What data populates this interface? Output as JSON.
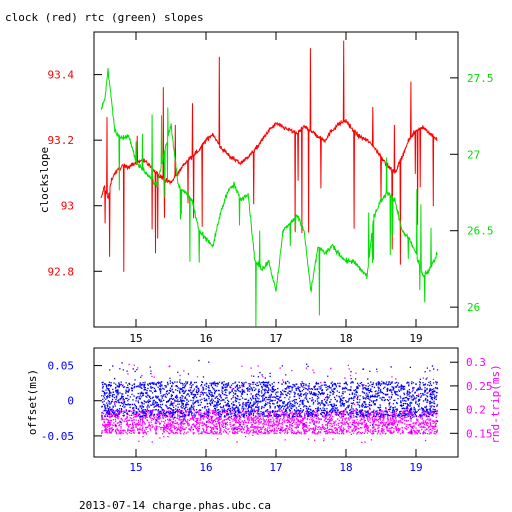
{
  "header": {
    "title": "clock (red) rtc (green) slopes",
    "footer": "2013-07-14 charge.phas.ubc.ca"
  },
  "colors": {
    "clock": "#ff0000",
    "rtc": "#00e000",
    "offset": "#0000ff",
    "roundtrip": "#ff00ff",
    "axis": "#000000"
  },
  "chart_data": [
    {
      "type": "line",
      "title": "clock (red) rtc (green) slopes",
      "xlim": [
        14.4,
        19.6
      ],
      "x_ticks": [
        15,
        16,
        17,
        18,
        19
      ],
      "ylabel": "clockslope",
      "ylim": [
        92.63,
        93.53
      ],
      "y_ticks": [
        92.8,
        93,
        93.2,
        93.4
      ],
      "y_tick_labels": [
        "92.8",
        "93",
        "93.2",
        "93.4"
      ],
      "y2lim": [
        25.87,
        27.8
      ],
      "y2_ticks": [
        26,
        26.5,
        27,
        27.5
      ],
      "y2_tick_labels": [
        "26",
        "26.5",
        "27",
        "27.5"
      ],
      "grid": false,
      "series": [
        {
          "name": "clock",
          "axis": "left",
          "color": "#ff0000",
          "x": [
            14.5,
            14.55,
            14.6,
            14.65,
            14.7,
            14.8,
            14.9,
            15.0,
            15.1,
            15.2,
            15.3,
            15.4,
            15.5,
            15.6,
            15.7,
            15.8,
            15.9,
            16.0,
            16.1,
            16.2,
            16.3,
            16.4,
            16.5,
            16.6,
            16.7,
            16.8,
            16.9,
            17.0,
            17.1,
            17.2,
            17.3,
            17.4,
            17.5,
            17.6,
            17.7,
            17.8,
            17.9,
            18.0,
            18.1,
            18.2,
            18.3,
            18.4,
            18.5,
            18.6,
            18.7,
            18.8,
            18.9,
            19.0,
            19.1,
            19.2,
            19.3
          ],
          "y": [
            93.02,
            93.06,
            93.02,
            93.08,
            93.1,
            93.12,
            93.12,
            93.13,
            93.14,
            93.12,
            93.1,
            93.08,
            93.07,
            93.1,
            93.13,
            93.15,
            93.17,
            93.2,
            93.22,
            93.18,
            93.16,
            93.14,
            93.13,
            93.15,
            93.17,
            93.2,
            93.23,
            93.25,
            93.24,
            93.23,
            93.22,
            93.24,
            93.23,
            93.21,
            93.2,
            93.23,
            93.25,
            93.26,
            93.23,
            93.21,
            93.2,
            93.18,
            93.15,
            93.12,
            93.1,
            93.15,
            93.2,
            93.23,
            93.24,
            93.22,
            93.2
          ]
        },
        {
          "name": "rtc",
          "axis": "right",
          "color": "#00e000",
          "x": [
            14.5,
            14.55,
            14.6,
            14.7,
            14.8,
            14.9,
            15.0,
            15.1,
            15.2,
            15.3,
            15.4,
            15.5,
            15.6,
            15.7,
            15.8,
            15.9,
            16.0,
            16.1,
            16.2,
            16.3,
            16.4,
            16.5,
            16.6,
            16.7,
            16.8,
            16.9,
            17.0,
            17.1,
            17.2,
            17.3,
            17.4,
            17.5,
            17.6,
            17.7,
            17.8,
            17.9,
            18.0,
            18.1,
            18.2,
            18.3,
            18.4,
            18.5,
            18.6,
            18.7,
            18.8,
            18.9,
            19.0,
            19.1,
            19.2,
            19.3
          ],
          "y": [
            27.3,
            27.35,
            27.55,
            27.15,
            27.1,
            27.12,
            26.95,
            26.9,
            26.85,
            26.8,
            27.0,
            27.2,
            26.8,
            26.75,
            26.7,
            26.5,
            26.45,
            26.4,
            26.6,
            26.75,
            26.8,
            26.7,
            26.75,
            26.3,
            26.25,
            26.3,
            26.1,
            26.5,
            26.55,
            26.6,
            26.5,
            26.1,
            26.4,
            26.35,
            26.4,
            26.35,
            26.3,
            26.3,
            26.25,
            26.2,
            26.6,
            26.7,
            26.75,
            26.7,
            26.5,
            26.45,
            26.35,
            26.2,
            26.25,
            26.35
          ]
        }
      ]
    },
    {
      "type": "scatter",
      "xlim": [
        14.4,
        19.6
      ],
      "x_ticks": [
        15,
        16,
        17,
        18,
        19
      ],
      "ylabel": "offset(ms)",
      "ylim": [
        -0.08,
        0.075
      ],
      "y_ticks": [
        -0.05,
        0,
        0.05
      ],
      "y_tick_labels": [
        "-0.05",
        "0",
        "0.05"
      ],
      "y2label": "rnd-trip(ms)",
      "y2lim": [
        0.1,
        0.33
      ],
      "y2_ticks": [
        0.15,
        0.2,
        0.25,
        0.3
      ],
      "y2_tick_labels": [
        "0.15",
        "0.2",
        "0.25",
        "0.3"
      ],
      "grid": false,
      "series": [
        {
          "name": "offset",
          "axis": "left",
          "color": "#0000ff",
          "x_range": [
            14.5,
            19.3
          ],
          "y_core": [
            -0.022,
            0.028
          ],
          "y_sparse": [
            -0.045,
            0.06
          ]
        },
        {
          "name": "rnd-trip",
          "axis": "right",
          "color": "#ff00ff",
          "x_range": [
            14.5,
            19.3
          ],
          "y_core": [
            0.15,
            0.2
          ],
          "y_sparse": [
            0.13,
            0.3
          ]
        }
      ]
    }
  ]
}
